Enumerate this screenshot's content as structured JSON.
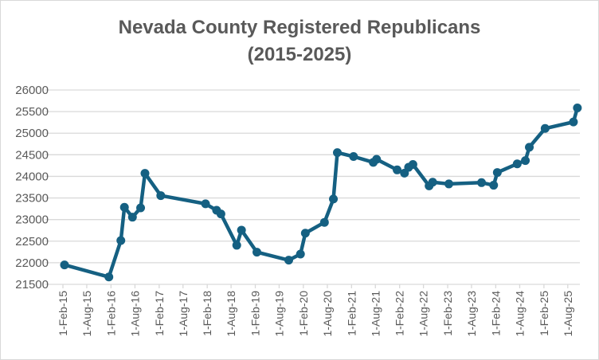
{
  "chart_data": {
    "type": "line",
    "title": [
      "Nevada County Registered Republicans",
      "(2015-2025)"
    ],
    "xlabel": "",
    "ylabel": "",
    "ylim": [
      21500,
      26000
    ],
    "yticks": [
      21500,
      22000,
      22500,
      23000,
      23500,
      24000,
      24500,
      25000,
      25500,
      26000
    ],
    "xlim": [
      "2015-02-01",
      "2025-11-01"
    ],
    "xticks": [
      {
        "date": "2015-02-01",
        "label": "1-Feb-15"
      },
      {
        "date": "2015-08-01",
        "label": "1-Aug-15"
      },
      {
        "date": "2016-02-01",
        "label": "1-Feb-16"
      },
      {
        "date": "2016-08-01",
        "label": "1-Aug-16"
      },
      {
        "date": "2017-02-01",
        "label": "1-Feb-17"
      },
      {
        "date": "2017-08-01",
        "label": "1-Aug-17"
      },
      {
        "date": "2018-02-01",
        "label": "1-Feb-18"
      },
      {
        "date": "2018-08-01",
        "label": "1-Aug-18"
      },
      {
        "date": "2019-02-01",
        "label": "1-Feb-19"
      },
      {
        "date": "2019-08-01",
        "label": "1-Aug-19"
      },
      {
        "date": "2020-02-01",
        "label": "1-Feb-20"
      },
      {
        "date": "2020-08-01",
        "label": "1-Aug-20"
      },
      {
        "date": "2021-02-01",
        "label": "1-Feb-21"
      },
      {
        "date": "2021-08-01",
        "label": "1-Aug-21"
      },
      {
        "date": "2022-02-01",
        "label": "1-Feb-22"
      },
      {
        "date": "2022-08-01",
        "label": "1-Aug-22"
      },
      {
        "date": "2023-02-01",
        "label": "1-Feb-23"
      },
      {
        "date": "2023-08-01",
        "label": "1-Aug-23"
      },
      {
        "date": "2024-02-01",
        "label": "1-Feb-24"
      },
      {
        "date": "2024-08-01",
        "label": "1-Aug-24"
      },
      {
        "date": "2025-02-01",
        "label": "1-Feb-25"
      },
      {
        "date": "2025-08-01",
        "label": "1-Aug-25"
      }
    ],
    "grid": "horizontal",
    "legend": "none",
    "colors": {
      "line": "#156082",
      "grid": "#d9d9d9",
      "text": "#595959"
    },
    "series": [
      {
        "points": [
          [
            "2015-02-13",
            21950
          ],
          [
            "2016-01-16",
            21670
          ],
          [
            "2016-04-16",
            22515
          ],
          [
            "2016-05-13",
            23285
          ],
          [
            "2016-07-13",
            23055
          ],
          [
            "2016-09-13",
            23270
          ],
          [
            "2016-10-16",
            24070
          ],
          [
            "2017-02-13",
            23555
          ],
          [
            "2018-01-19",
            23365
          ],
          [
            "2018-04-13",
            23215
          ],
          [
            "2018-05-16",
            23130
          ],
          [
            "2018-09-13",
            22405
          ],
          [
            "2018-10-19",
            22755
          ],
          [
            "2019-02-13",
            22245
          ],
          [
            "2019-10-13",
            22060
          ],
          [
            "2020-01-10",
            22200
          ],
          [
            "2020-02-16",
            22685
          ],
          [
            "2020-07-10",
            22935
          ],
          [
            "2020-09-16",
            23475
          ],
          [
            "2020-10-16",
            24550
          ],
          [
            "2021-02-16",
            24460
          ],
          [
            "2021-07-16",
            24325
          ],
          [
            "2021-08-10",
            24395
          ],
          [
            "2022-01-13",
            24150
          ],
          [
            "2022-03-10",
            24075
          ],
          [
            "2022-04-10",
            24210
          ],
          [
            "2022-05-13",
            24275
          ],
          [
            "2022-09-13",
            23780
          ],
          [
            "2022-10-10",
            23865
          ],
          [
            "2023-02-10",
            23825
          ],
          [
            "2023-10-16",
            23855
          ],
          [
            "2024-01-16",
            23795
          ],
          [
            "2024-02-13",
            24090
          ],
          [
            "2024-07-13",
            24290
          ],
          [
            "2024-09-13",
            24365
          ],
          [
            "2024-10-13",
            24675
          ],
          [
            "2025-02-10",
            25110
          ],
          [
            "2025-09-13",
            25260
          ],
          [
            "2025-10-13",
            25585
          ]
        ]
      }
    ]
  }
}
